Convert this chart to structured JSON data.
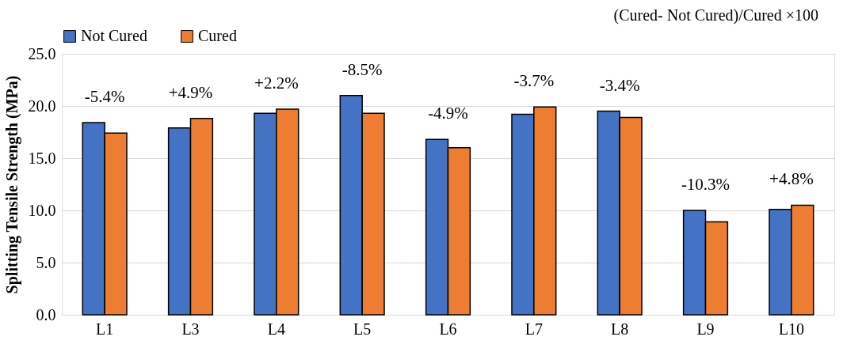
{
  "chart_data": {
    "type": "bar",
    "ylabel": "Splitting Tensile Strength (MPa)",
    "categories": [
      "L1",
      "L3",
      "L4",
      "L5",
      "L6",
      "L7",
      "L8",
      "L9",
      "L10"
    ],
    "series": [
      {
        "name": "Not Cured",
        "color": "#4472c4",
        "values": [
          18.4,
          17.9,
          19.3,
          21.0,
          16.8,
          19.2,
          19.5,
          10.0,
          10.1
        ]
      },
      {
        "name": "Cured",
        "color": "#ed7d31",
        "values": [
          17.4,
          18.8,
          19.7,
          19.3,
          16.0,
          19.9,
          18.9,
          8.9,
          10.5
        ]
      }
    ],
    "ylim": [
      0,
      25
    ],
    "yticks": [
      {
        "value": 0,
        "label": "0.0"
      },
      {
        "value": 5,
        "label": "5.0"
      },
      {
        "value": 10,
        "label": "10.0"
      },
      {
        "value": 15,
        "label": "15.0"
      },
      {
        "value": 20,
        "label": "20.0"
      },
      {
        "value": 25,
        "label": "25.0"
      }
    ],
    "grid": "y",
    "legend": "top left",
    "annotations": [
      {
        "text": "-5.4%",
        "x": "L1",
        "y": 18.4
      },
      {
        "text": "+4.9%",
        "x": "L3",
        "y": 18.8
      },
      {
        "text": "+2.2%",
        "x": "L4",
        "y": 19.7
      },
      {
        "text": "-8.5%",
        "x": "L5",
        "y": 21.0
      },
      {
        "text": "-4.9%",
        "x": "L6",
        "y": 16.8
      },
      {
        "text": "-3.7%",
        "x": "L7",
        "y": 19.9
      },
      {
        "text": "-3.4%",
        "x": "L8",
        "y": 19.5
      },
      {
        "text": "-10.3%",
        "x": "L9",
        "y": 10.0
      },
      {
        "text": "+4.8%",
        "x": "L10",
        "y": 10.5
      },
      "(Cured- Not Cured)/Cured ×100"
    ]
  }
}
